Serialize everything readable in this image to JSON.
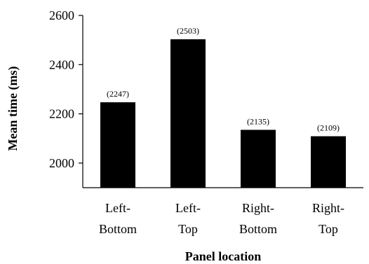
{
  "chart_data": {
    "type": "bar",
    "categories": [
      [
        "Left-",
        "Bottom"
      ],
      [
        "Left-",
        "Top"
      ],
      [
        "Right-",
        "Bottom"
      ],
      [
        "Right-",
        "Top"
      ]
    ],
    "values": [
      2247,
      2503,
      2135,
      2109
    ],
    "data_labels": [
      "(2247)",
      "(2503)",
      "(2135)",
      "(2109)"
    ],
    "xlabel": "Panel location",
    "ylabel": "Mean time (ms)",
    "ylim": [
      1900,
      2600
    ],
    "yticks": [
      2000,
      2200,
      2400,
      2600
    ],
    "bar_color": "#000000",
    "grid": false,
    "legend": "none"
  }
}
